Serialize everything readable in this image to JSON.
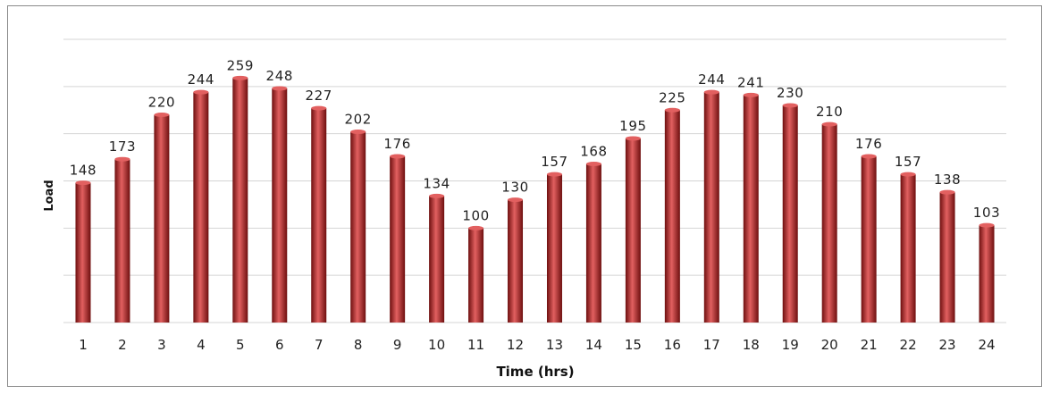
{
  "chart_data": {
    "type": "bar",
    "title": "",
    "xlabel": "Time (hrs)",
    "ylabel": "Load",
    "categories": [
      "1",
      "2",
      "3",
      "4",
      "5",
      "6",
      "7",
      "8",
      "9",
      "10",
      "11",
      "12",
      "13",
      "14",
      "15",
      "16",
      "17",
      "18",
      "19",
      "20",
      "21",
      "22",
      "23",
      "24"
    ],
    "values": [
      148,
      173,
      220,
      244,
      259,
      248,
      227,
      202,
      176,
      134,
      100,
      130,
      157,
      168,
      195,
      225,
      244,
      241,
      230,
      210,
      176,
      157,
      138,
      103
    ],
    "ylim": [
      0,
      300
    ],
    "y_gridlines": [
      0,
      50,
      100,
      150,
      200,
      250,
      300
    ],
    "y_tick_labels_visible": false,
    "grid": true,
    "legend": "none",
    "data_labels": true,
    "colors": {
      "bar": "#b81e1e",
      "bar_dark": "#6e0f0f",
      "bar_light": "#e26060",
      "grid": "#d4d4d4",
      "frame": "#8a8a8a"
    }
  }
}
